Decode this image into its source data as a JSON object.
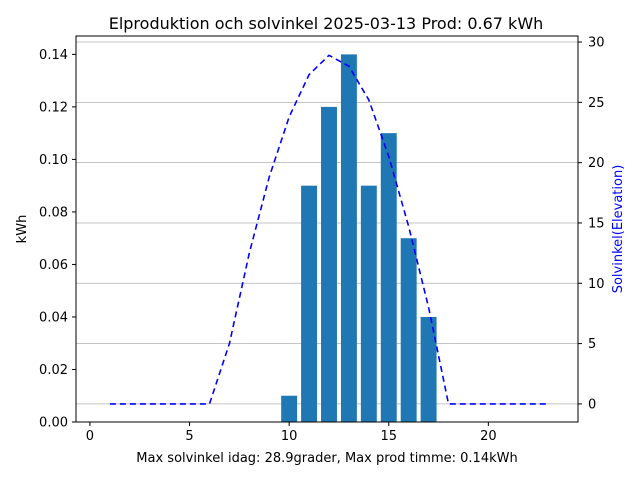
{
  "chart_data": {
    "type": "bar",
    "title": "Elproduktion och solvinkel 2025-03-13 Prod: 0.67 kWh",
    "xlabel": "Max solvinkel idag: 28.9grader, Max prod timme: 0.14kWh",
    "ylabel": "kWh",
    "y2label": "Solvinkel(Elevation)",
    "xlim": [
      -0.7,
      24.5
    ],
    "ylim": [
      0,
      0.147
    ],
    "y2lim": [
      -1.5,
      30.5
    ],
    "xticks": [
      0,
      5,
      10,
      15,
      20
    ],
    "yticks": [
      "0.00",
      "0.02",
      "0.04",
      "0.06",
      "0.08",
      "0.10",
      "0.12",
      "0.14"
    ],
    "y2ticks": [
      0,
      5,
      10,
      15,
      20,
      25,
      30
    ],
    "grid": "horizontal, right axis",
    "bars": {
      "x": [
        10,
        11,
        12,
        13,
        14,
        15,
        16,
        17
      ],
      "values": [
        0.01,
        0.09,
        0.12,
        0.14,
        0.09,
        0.11,
        0.07,
        0.04
      ],
      "color": "#1f77b4"
    },
    "line": {
      "axis": "right",
      "style": "dashed",
      "color": "#0000ff",
      "x": [
        1,
        2,
        3,
        4,
        5,
        6,
        7,
        8,
        9,
        10,
        11,
        12,
        13,
        14,
        15,
        16,
        17,
        18,
        19,
        20,
        21,
        22,
        23
      ],
      "values": [
        0,
        0,
        0,
        0,
        0,
        0,
        5.0,
        12.5,
        18.8,
        23.8,
        27.3,
        28.9,
        28.0,
        25.2,
        20.5,
        14.7,
        8.0,
        0,
        0,
        0,
        0,
        0,
        0
      ]
    }
  }
}
